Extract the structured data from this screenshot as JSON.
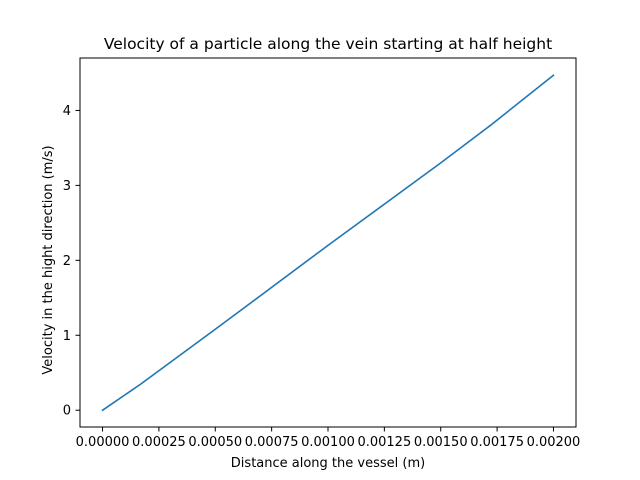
{
  "chart_data": {
    "type": "line",
    "title": "Velocity of a particle along the vein starting at half height",
    "xlabel": "Distance along the vessel (m)",
    "ylabel": "Velocity in the hight direction (m/s)",
    "xlim": [
      -0.0001,
      0.0021
    ],
    "ylim": [
      -0.224,
      4.7
    ],
    "xticks": [
      0.0,
      0.00025,
      0.0005,
      0.00075,
      0.001,
      0.00125,
      0.0015,
      0.00175,
      0.002
    ],
    "xtick_labels": [
      "0.00000",
      "0.00025",
      "0.00050",
      "0.00075",
      "0.00100",
      "0.00125",
      "0.00150",
      "0.00175",
      "0.00200"
    ],
    "yticks": [
      0,
      1,
      2,
      3,
      4
    ],
    "ytick_labels": [
      "0",
      "1",
      "2",
      "3",
      "4"
    ],
    "grid": false,
    "series": [
      {
        "color": "#1f77b4",
        "x": [
          0.0,
          0.00017,
          0.0005,
          0.001,
          0.0015,
          0.00172,
          0.002
        ],
        "y": [
          0.0,
          0.35,
          1.08,
          2.2,
          3.3,
          3.8,
          4.47
        ]
      }
    ]
  }
}
